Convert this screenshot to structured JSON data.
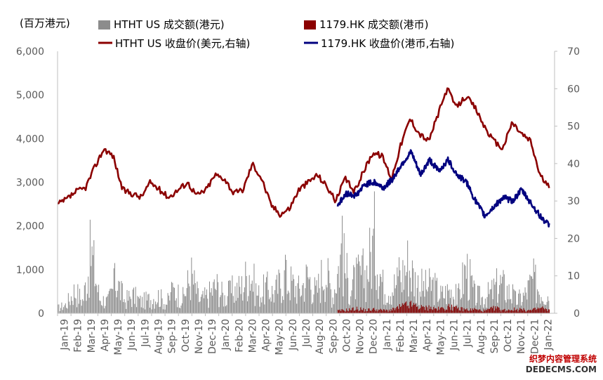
{
  "chart_data": {
    "type": "bar+line",
    "unit_label": "(百万港元)",
    "legend": [
      {
        "label": "HTHT US 成交额(港元)",
        "kind": "bar",
        "color": "#8c8c8c"
      },
      {
        "label": "1179.HK 成交额(港币)",
        "kind": "bar",
        "color": "#8b0000"
      },
      {
        "label": "HTHT US 收盘价(美元,右轴)",
        "kind": "line",
        "color": "#8b0000"
      },
      {
        "label": "1179.HK 收盘价(港币,右轴)",
        "kind": "line",
        "color": "#00007f"
      }
    ],
    "left_axis": {
      "ticks": [
        "0",
        "1,000",
        "2,000",
        "3,000",
        "4,000",
        "5,000",
        "6,000"
      ],
      "range": [
        0,
        6000
      ]
    },
    "right_axis": {
      "ticks": [
        "0",
        "10",
        "20",
        "30",
        "40",
        "50",
        "60",
        "70"
      ],
      "range": [
        0,
        70
      ]
    },
    "x_categories": [
      "Jan-19",
      "Feb-19",
      "Mar-19",
      "Apr-19",
      "May-19",
      "Jun-19",
      "Jul-19",
      "Aug-19",
      "Sep-19",
      "Oct-19",
      "Nov-19",
      "Dec-19",
      "Jan-20",
      "Feb-20",
      "Mar-20",
      "Apr-20",
      "May-20",
      "Jun-20",
      "Jul-20",
      "Aug-20",
      "Sep-20",
      "Oct-20",
      "Nov-20",
      "Dec-20",
      "Jan-21",
      "Feb-21",
      "Mar-21",
      "Apr-21",
      "May-21",
      "Jun-21",
      "Jul-21",
      "Aug-21",
      "Sep-21",
      "Oct-21",
      "Nov-21",
      "Dec-21",
      "Jan-22"
    ],
    "series": [
      {
        "name": "HTHT US 收盘价(美元,右轴)",
        "axis": "right",
        "color": "#8b0000",
        "x_start": 0,
        "x_end": 36.6,
        "values": [
          29,
          30.5,
          32.5,
          33.5,
          39,
          44,
          42,
          33,
          32,
          31,
          35,
          33,
          31,
          33,
          35,
          31.5,
          33,
          37,
          36,
          32,
          33,
          40,
          36,
          29,
          26.5,
          28,
          33,
          35,
          37,
          34,
          30,
          36,
          32.5,
          38,
          43,
          42,
          36,
          45,
          52,
          48,
          46,
          53,
          60,
          55,
          58,
          55,
          50,
          46,
          44,
          51,
          48,
          46,
          37,
          33.5
        ]
      },
      {
        "name": "1179.HK 收盘价(港币,右轴)",
        "axis": "right",
        "color": "#00007f",
        "x_start": 20.85,
        "x_end": 36.6,
        "values": [
          29,
          32,
          31.5,
          34.5,
          35,
          33.5,
          36,
          40,
          43,
          37,
          41,
          38,
          41,
          37,
          35,
          30,
          26,
          28.5,
          31,
          30,
          33,
          29.5,
          26,
          23.5
        ]
      },
      {
        "name": "HTHT US 成交额(港元)",
        "axis": "left",
        "color": "#8c8c8c",
        "x_start": 0,
        "x_end": 36.6,
        "values": [
          200,
          350,
          900,
          500,
          2400,
          600,
          450,
          1300,
          500,
          700,
          450,
          550,
          700,
          380,
          900,
          600,
          1500,
          500,
          700,
          1100,
          600,
          900,
          1000,
          1700,
          700,
          1000,
          800,
          1400,
          1200,
          900,
          1500,
          800,
          1800,
          700,
          2400,
          1000,
          1400,
          1600,
          2900,
          1100,
          1000,
          1300,
          2000,
          1200,
          1000,
          1100,
          700,
          900,
          600,
          1800,
          700,
          600,
          800,
          1200,
          900,
          500,
          700,
          1300,
          900,
          700
        ]
      },
      {
        "name": "1179.HK 成交额(港币)",
        "axis": "left",
        "color": "#8b0000",
        "x_start": 20.85,
        "x_end": 36.6,
        "values": [
          80,
          120,
          160,
          110,
          140,
          90,
          130,
          250,
          300,
          200,
          180,
          150,
          220,
          160,
          130,
          120,
          90,
          180,
          110,
          140,
          120,
          100,
          180,
          90
        ]
      }
    ]
  },
  "watermark": {
    "line1": "织梦内容管理系统",
    "line2": "DEDECMS.COM"
  }
}
